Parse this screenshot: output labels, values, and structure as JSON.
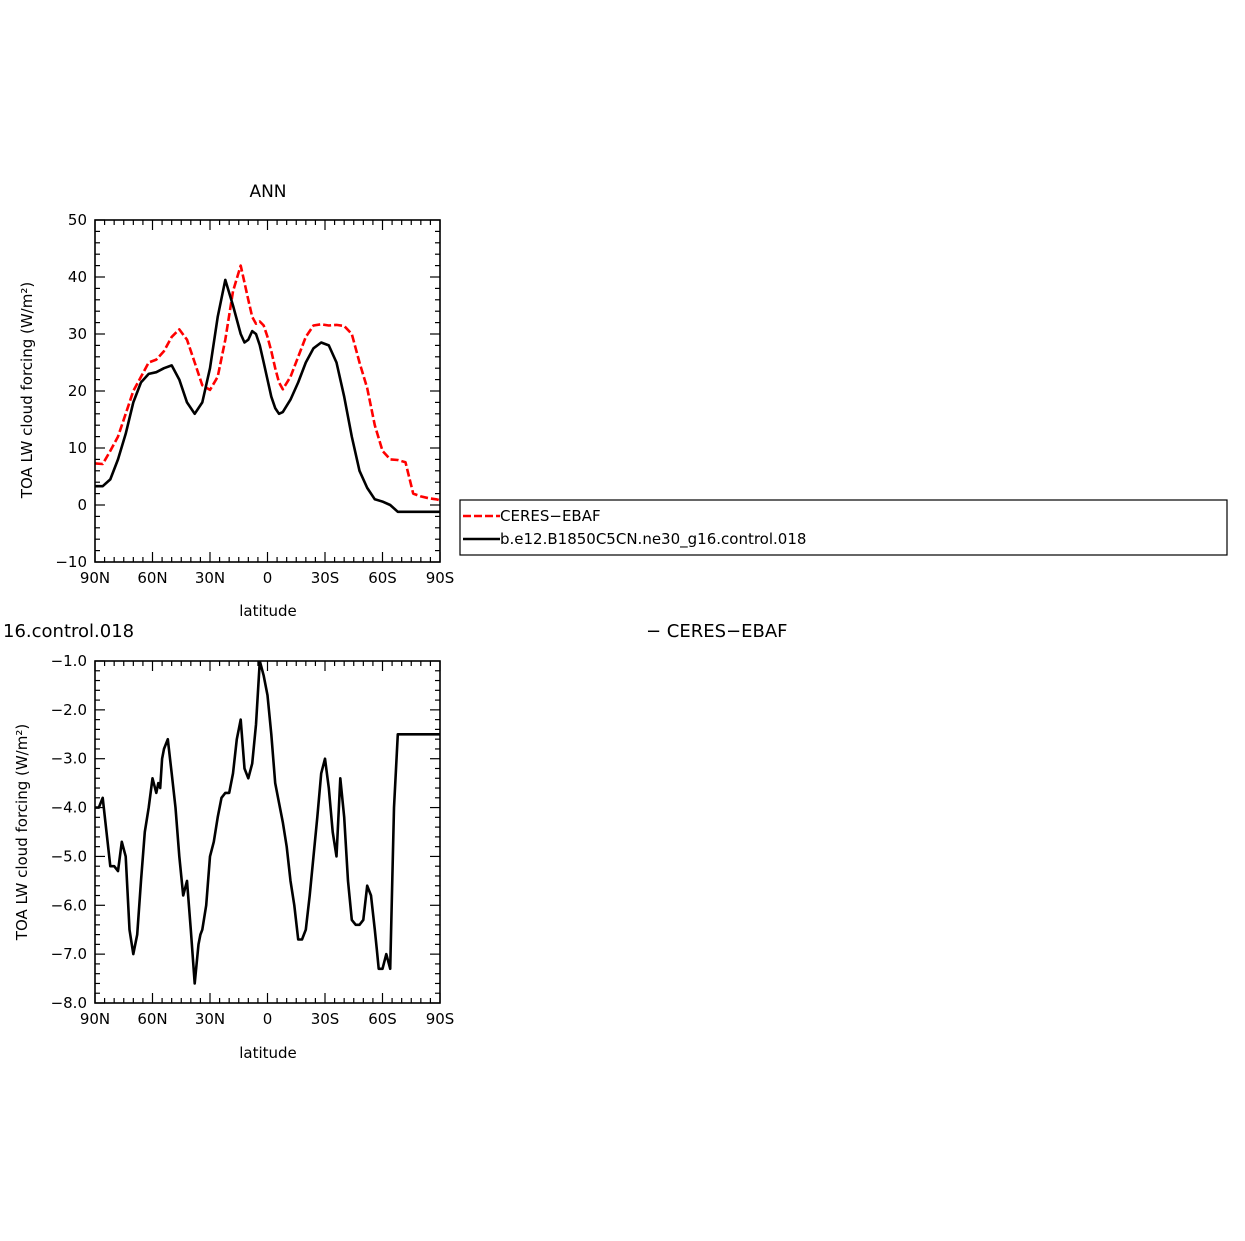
{
  "chart_data": [
    {
      "type": "line",
      "title": "ANN",
      "xlabel": "latitude",
      "ylabel": "TOA LW cloud forcing (W/m²)",
      "ylim": [
        -10,
        50
      ],
      "yticks": [
        "50",
        "40",
        "30",
        "20",
        "10",
        "0",
        "−10"
      ],
      "xlim": [
        90,
        -90
      ],
      "xticks": [
        "90N",
        "60N",
        "30N",
        "0",
        "30S",
        "60S",
        "90S"
      ],
      "legend": "right, outside plot",
      "series": [
        {
          "name": "CERES−EBAF",
          "color": "#ff0000",
          "style": "dashed",
          "x": [
            90,
            86,
            82,
            78,
            74,
            70,
            66,
            62,
            58,
            54,
            50,
            46,
            42,
            38,
            34,
            30,
            26,
            22,
            18,
            14,
            10,
            8,
            6,
            4,
            2,
            0,
            -2,
            -4,
            -6,
            -8,
            -12,
            -16,
            -20,
            -24,
            -28,
            -32,
            -36,
            -40,
            -44,
            -48,
            -52,
            -56,
            -60,
            -64,
            -68,
            -72,
            -76,
            -80,
            -84,
            -88,
            -90
          ],
          "values": [
            7.3,
            7.2,
            9.5,
            12,
            16,
            20,
            22.5,
            25,
            25.5,
            27,
            29.5,
            30.8,
            29,
            25,
            21,
            20.2,
            22.5,
            29,
            37.5,
            42,
            36,
            33,
            31.8,
            32.2,
            31.5,
            29.5,
            27,
            24,
            21.5,
            20.3,
            22.5,
            26,
            29.5,
            31.5,
            31.7,
            31.5,
            31.6,
            31.4,
            30,
            25,
            20.5,
            14,
            9.5,
            8,
            7.9,
            7.5,
            2,
            1.5,
            1.2,
            1.0,
            0.8
          ]
        },
        {
          "name": "b.e12.B1850C5CN.ne30_g16.control.018",
          "color": "#000000",
          "style": "solid",
          "x": [
            90,
            86,
            82,
            78,
            74,
            70,
            66,
            62,
            58,
            54,
            50,
            46,
            42,
            38,
            34,
            30,
            26,
            22,
            18,
            14,
            12,
            10,
            8,
            6,
            4,
            2,
            0,
            -2,
            -4,
            -6,
            -8,
            -12,
            -16,
            -20,
            -24,
            -28,
            -32,
            -36,
            -40,
            -44,
            -48,
            -52,
            -56,
            -60,
            -64,
            -68,
            -72,
            -76,
            -80,
            -84,
            -88,
            -90
          ],
          "values": [
            3.3,
            3.3,
            4.5,
            8,
            12.5,
            18,
            21.5,
            23,
            23.3,
            24,
            24.5,
            22,
            18,
            16,
            18,
            24,
            33,
            39.5,
            35,
            30,
            28.5,
            29,
            30.5,
            30,
            28,
            25,
            22,
            19,
            17,
            16,
            16.3,
            18.5,
            21.5,
            25,
            27.5,
            28.5,
            28,
            25,
            19,
            12,
            6,
            3,
            1,
            0.6,
            0,
            -1.2,
            -1.2,
            -1.2,
            -1.2,
            -1.2,
            -1.2,
            -1.2
          ]
        }
      ]
    },
    {
      "type": "line",
      "title": "16.control.018",
      "title_right": "− CERES−EBAF",
      "xlabel": "latitude",
      "ylabel": "TOA LW cloud forcing (W/m²)",
      "ylim": [
        -8,
        -1
      ],
      "yticks": [
        "−1.0",
        "−2.0",
        "−3.0",
        "−4.0",
        "−5.0",
        "−6.0",
        "−7.0",
        "−8.0"
      ],
      "xlim": [
        90,
        -90
      ],
      "xticks": [
        "90N",
        "60N",
        "30N",
        "0",
        "30S",
        "60S",
        "90S"
      ],
      "series": [
        {
          "name": "",
          "color": "#000000",
          "style": "solid",
          "x": [
            90,
            88,
            86,
            84,
            82,
            80,
            78,
            76,
            74,
            72,
            70,
            68,
            66,
            64,
            62,
            60,
            58,
            57,
            56,
            55,
            54,
            52,
            50,
            48,
            46,
            44,
            42,
            40,
            38,
            36,
            35,
            34,
            32,
            30,
            28,
            26,
            24,
            22,
            20,
            18,
            16,
            14,
            12,
            10,
            8,
            6,
            4,
            2,
            0,
            -2,
            -4,
            -6,
            -8,
            -10,
            -12,
            -14,
            -16,
            -18,
            -20,
            -22,
            -24,
            -26,
            -28,
            -30,
            -32,
            -34,
            -36,
            -38,
            -40,
            -42,
            -44,
            -46,
            -48,
            -50,
            -52,
            -54,
            -56,
            -57,
            -58,
            -60,
            -62,
            -64,
            -66,
            -68,
            -70,
            -72,
            -74,
            -76,
            -78,
            -80,
            -82,
            -84,
            -86,
            -88,
            -90
          ],
          "values": [
            -4.0,
            -4.0,
            -3.8,
            -4.5,
            -5.2,
            -5.2,
            -5.3,
            -4.7,
            -5.0,
            -6.5,
            -7.0,
            -6.6,
            -5.5,
            -4.5,
            -4.0,
            -3.4,
            -3.7,
            -3.5,
            -3.6,
            -3.0,
            -2.8,
            -2.6,
            -3.3,
            -4.0,
            -5.0,
            -5.8,
            -5.5,
            -6.5,
            -7.6,
            -6.8,
            -6.6,
            -6.5,
            -6.0,
            -5.0,
            -4.7,
            -4.2,
            -3.8,
            -3.7,
            -3.7,
            -3.3,
            -2.6,
            -2.2,
            -3.2,
            -3.4,
            -3.1,
            -2.3,
            -1.0,
            -1.3,
            -1.7,
            -2.5,
            -3.5,
            -3.9,
            -4.3,
            -4.8,
            -5.5,
            -6.0,
            -6.7,
            -6.7,
            -6.5,
            -5.8,
            -5.0,
            -4.2,
            -3.3,
            -3.0,
            -3.6,
            -4.5,
            -5.0,
            -3.4,
            -4.2,
            -5.5,
            -6.3,
            -6.4,
            -6.4,
            -6.3,
            -5.6,
            -5.8,
            -6.5,
            -6.9,
            -7.3,
            -7.3,
            -7.0,
            -7.3,
            -4.0,
            -2.5,
            -2.5,
            -2.5,
            -2.5,
            -2.5,
            -2.5,
            -2.5,
            -2.5,
            -2.5,
            -2.5,
            -2.5,
            -2.5
          ]
        }
      ]
    }
  ],
  "legend": {
    "items": [
      {
        "label": "CERES−EBAF",
        "color": "#ff0000",
        "style": "dashed"
      },
      {
        "label": "b.e12.B1850C5CN.ne30_g16.control.018",
        "color": "#000000",
        "style": "solid"
      }
    ]
  }
}
